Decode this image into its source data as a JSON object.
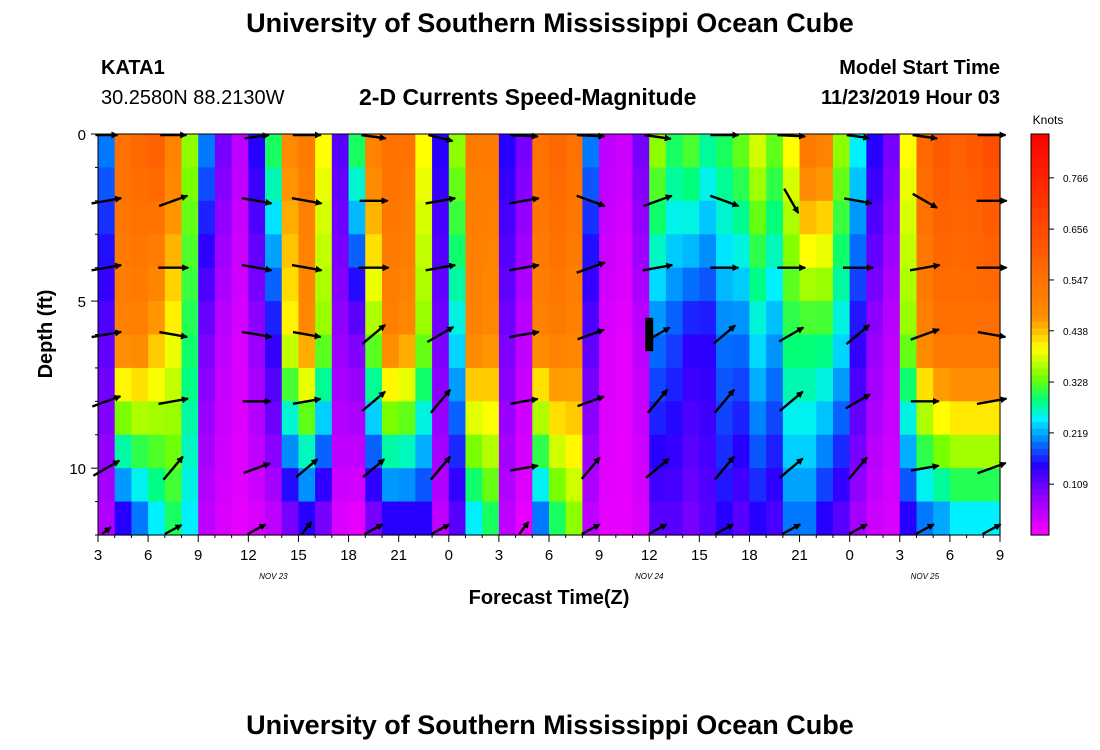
{
  "header": {
    "title": "University of Southern Mississippi Ocean Cube",
    "station": "KATA1",
    "coordinates": "30.2580N 88.2130W",
    "product": "2-D Currents Speed-Magnitude",
    "model_label": "Model Start Time",
    "model_time": "11/23/2019 Hour 03"
  },
  "footer": {
    "title": "University of Southern Mississippi Ocean Cube"
  },
  "chart_data": {
    "type": "heatmap",
    "xlabel": "Forecast Time(Z)",
    "ylabel": "Depth (ft)",
    "x_tick_labels": [
      "3",
      "6",
      "9",
      "12",
      "15",
      "18",
      "21",
      "0",
      "3",
      "6",
      "9",
      "12",
      "15",
      "18",
      "21",
      "0",
      "3",
      "6",
      "9"
    ],
    "x_day_labels": [
      {
        "label": "NOV 23",
        "hour_index": 10.5
      },
      {
        "label": "NOV 24",
        "hour_index": 33
      },
      {
        "label": "NOV 25",
        "hour_index": 49.5
      }
    ],
    "x_range_hours": [
      0,
      54
    ],
    "y_ticks": [
      0,
      5,
      10
    ],
    "y_range_ft": [
      0,
      12
    ],
    "colorbar": {
      "unit": "Knots",
      "ticks": [
        0.109,
        0.219,
        0.328,
        0.438,
        0.547,
        0.656,
        0.766
      ],
      "range": [
        0.0,
        0.86
      ]
    },
    "depth_rows_ft": [
      0.5,
      1.5,
      2.5,
      3.5,
      4.5,
      5.5,
      6.5,
      7.5,
      8.5,
      9.5,
      10.5,
      11.5
    ],
    "speed_profile_by_time": [
      [
        0.2,
        0.12,
        0.06
      ],
      [
        0.55,
        0.5,
        0.15
      ],
      [
        0.58,
        0.5,
        0.2
      ],
      [
        0.6,
        0.45,
        0.25
      ],
      [
        0.5,
        0.4,
        0.3
      ],
      [
        0.35,
        0.3,
        0.25
      ],
      [
        0.2,
        0.1,
        0.05
      ],
      [
        0.1,
        0.05,
        0.03
      ],
      [
        0.05,
        0.03,
        0.02
      ],
      [
        0.15,
        0.08,
        0.03
      ],
      [
        0.3,
        0.15,
        0.05
      ],
      [
        0.48,
        0.4,
        0.1
      ],
      [
        0.52,
        0.48,
        0.15
      ],
      [
        0.4,
        0.35,
        0.1
      ],
      [
        0.12,
        0.08,
        0.03
      ],
      [
        0.3,
        0.1,
        0.02
      ],
      [
        0.5,
        0.35,
        0.1
      ],
      [
        0.55,
        0.5,
        0.15
      ],
      [
        0.55,
        0.48,
        0.15
      ],
      [
        0.4,
        0.35,
        0.15
      ],
      [
        0.15,
        0.1,
        0.05
      ],
      [
        0.35,
        0.25,
        0.12
      ],
      [
        0.52,
        0.5,
        0.25
      ],
      [
        0.52,
        0.48,
        0.3
      ],
      [
        0.15,
        0.1,
        0.05
      ],
      [
        0.1,
        0.05,
        0.02
      ],
      [
        0.55,
        0.5,
        0.2
      ],
      [
        0.58,
        0.52,
        0.3
      ],
      [
        0.55,
        0.5,
        0.35
      ],
      [
        0.2,
        0.12,
        0.05
      ],
      [
        0.05,
        0.03,
        0.02
      ],
      [
        0.04,
        0.02,
        0.02
      ],
      [
        0.1,
        0.05,
        0.03
      ],
      [
        0.35,
        0.2,
        0.12
      ],
      [
        0.3,
        0.18,
        0.12
      ],
      [
        0.32,
        0.15,
        0.1
      ],
      [
        0.28,
        0.15,
        0.12
      ],
      [
        0.3,
        0.2,
        0.15
      ],
      [
        0.33,
        0.2,
        0.12
      ],
      [
        0.38,
        0.25,
        0.15
      ],
      [
        0.33,
        0.22,
        0.13
      ],
      [
        0.4,
        0.3,
        0.2
      ],
      [
        0.52,
        0.3,
        0.2
      ],
      [
        0.5,
        0.3,
        0.15
      ],
      [
        0.35,
        0.25,
        0.12
      ],
      [
        0.25,
        0.15,
        0.07
      ],
      [
        0.15,
        0.08,
        0.04
      ],
      [
        0.1,
        0.05,
        0.03
      ],
      [
        0.4,
        0.35,
        0.15
      ],
      [
        0.58,
        0.5,
        0.2
      ],
      [
        0.62,
        0.55,
        0.22
      ],
      [
        0.6,
        0.55,
        0.25
      ],
      [
        0.62,
        0.55,
        0.25
      ],
      [
        0.65,
        0.55,
        0.25
      ]
    ],
    "vector_columns_hours": [
      0.5,
      4.5,
      9.5,
      12.5,
      16.5,
      20.5,
      25.5,
      29.5,
      33.5,
      37.5,
      41.5,
      45.5,
      49.5,
      53.5
    ],
    "vector_rows_ft": [
      0,
      2,
      4,
      6,
      8,
      10,
      12
    ],
    "vector_directions_deg": [
      [
        180,
        180,
        160,
        180,
        200,
        210,
        190,
        190,
        200,
        180,
        190,
        200,
        200,
        180
      ],
      [
        170,
        160,
        190,
        190,
        180,
        170,
        170,
        200,
        160,
        200,
        240,
        190,
        210,
        180
      ],
      [
        170,
        180,
        190,
        190,
        180,
        170,
        170,
        160,
        170,
        180,
        180,
        180,
        170,
        180
      ],
      [
        170,
        190,
        190,
        190,
        140,
        150,
        170,
        160,
        150,
        140,
        150,
        140,
        160,
        190
      ],
      [
        160,
        170,
        180,
        170,
        140,
        130,
        170,
        160,
        130,
        130,
        140,
        150,
        180,
        170
      ],
      [
        150,
        130,
        160,
        140,
        140,
        130,
        170,
        130,
        140,
        130,
        140,
        130,
        170,
        160
      ],
      [
        120,
        130,
        130,
        110,
        130,
        130,
        110,
        130,
        130,
        130,
        130,
        130,
        130,
        130
      ]
    ],
    "vector_lengths": [
      [
        22,
        26,
        26,
        28,
        26,
        28,
        28,
        28,
        28,
        28,
        28,
        24,
        26,
        28
      ],
      [
        30,
        30,
        30,
        30,
        28,
        30,
        30,
        30,
        30,
        30,
        28,
        28,
        28,
        30
      ],
      [
        30,
        30,
        30,
        30,
        30,
        30,
        30,
        30,
        30,
        28,
        28,
        30,
        30,
        30
      ],
      [
        30,
        28,
        30,
        28,
        30,
        30,
        30,
        28,
        28,
        28,
        28,
        30,
        30,
        28
      ],
      [
        30,
        30,
        28,
        28,
        30,
        30,
        28,
        28,
        30,
        30,
        30,
        28,
        28,
        30
      ],
      [
        30,
        30,
        28,
        28,
        28,
        30,
        28,
        28,
        30,
        30,
        30,
        28,
        28,
        30
      ],
      [
        18,
        26,
        28,
        28,
        28,
        28,
        28,
        28,
        28,
        28,
        28,
        28,
        28,
        28
      ]
    ],
    "marker": {
      "hour": 33,
      "depth_ft": [
        5.5,
        6.5
      ]
    }
  }
}
